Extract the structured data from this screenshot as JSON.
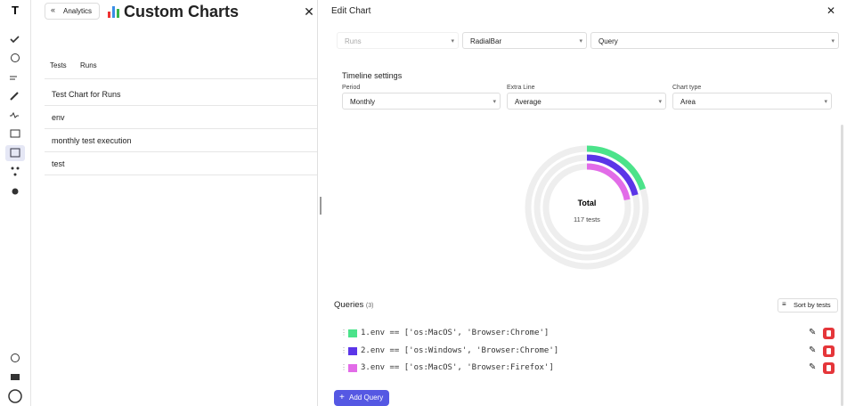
{
  "header": {
    "back_button": "Analytics",
    "title": "Custom Charts"
  },
  "tabs": [
    "Tests",
    "Runs"
  ],
  "list": [
    "Test Chart for Runs",
    "env",
    "monthly test execution",
    "test"
  ],
  "edit_panel": {
    "title": "Edit Chart",
    "selects": [
      "Runs",
      "RadialBar",
      "Query"
    ],
    "timeline": {
      "title": "Timeline settings",
      "fields": [
        {
          "label": "Period",
          "value": "Monthly"
        },
        {
          "label": "Extra Line",
          "value": "Average"
        },
        {
          "label": "Chart type",
          "value": "Area"
        }
      ]
    },
    "queries_title": "Queries",
    "queries_count": "(3)",
    "sort_button": "Sort by tests",
    "add_button": "Add Query"
  },
  "chart_data": {
    "type": "radialBar",
    "center_title": "Total",
    "center_subtitle": "117 tests",
    "ylim": [
      0,
      100
    ],
    "series": [
      {
        "name": "1.env == ['os:MacOS', 'Browser:Chrome']",
        "color": "#4be38a",
        "values": [
          20
        ]
      },
      {
        "name": "2.env == ['os:Windows', 'Browser:Chrome']",
        "color": "#5b35e8",
        "values": [
          21
        ]
      },
      {
        "name": "3.env == ['os:MacOS', 'Browser:Firefox']",
        "color": "#e26ce8",
        "values": [
          22
        ]
      }
    ]
  }
}
